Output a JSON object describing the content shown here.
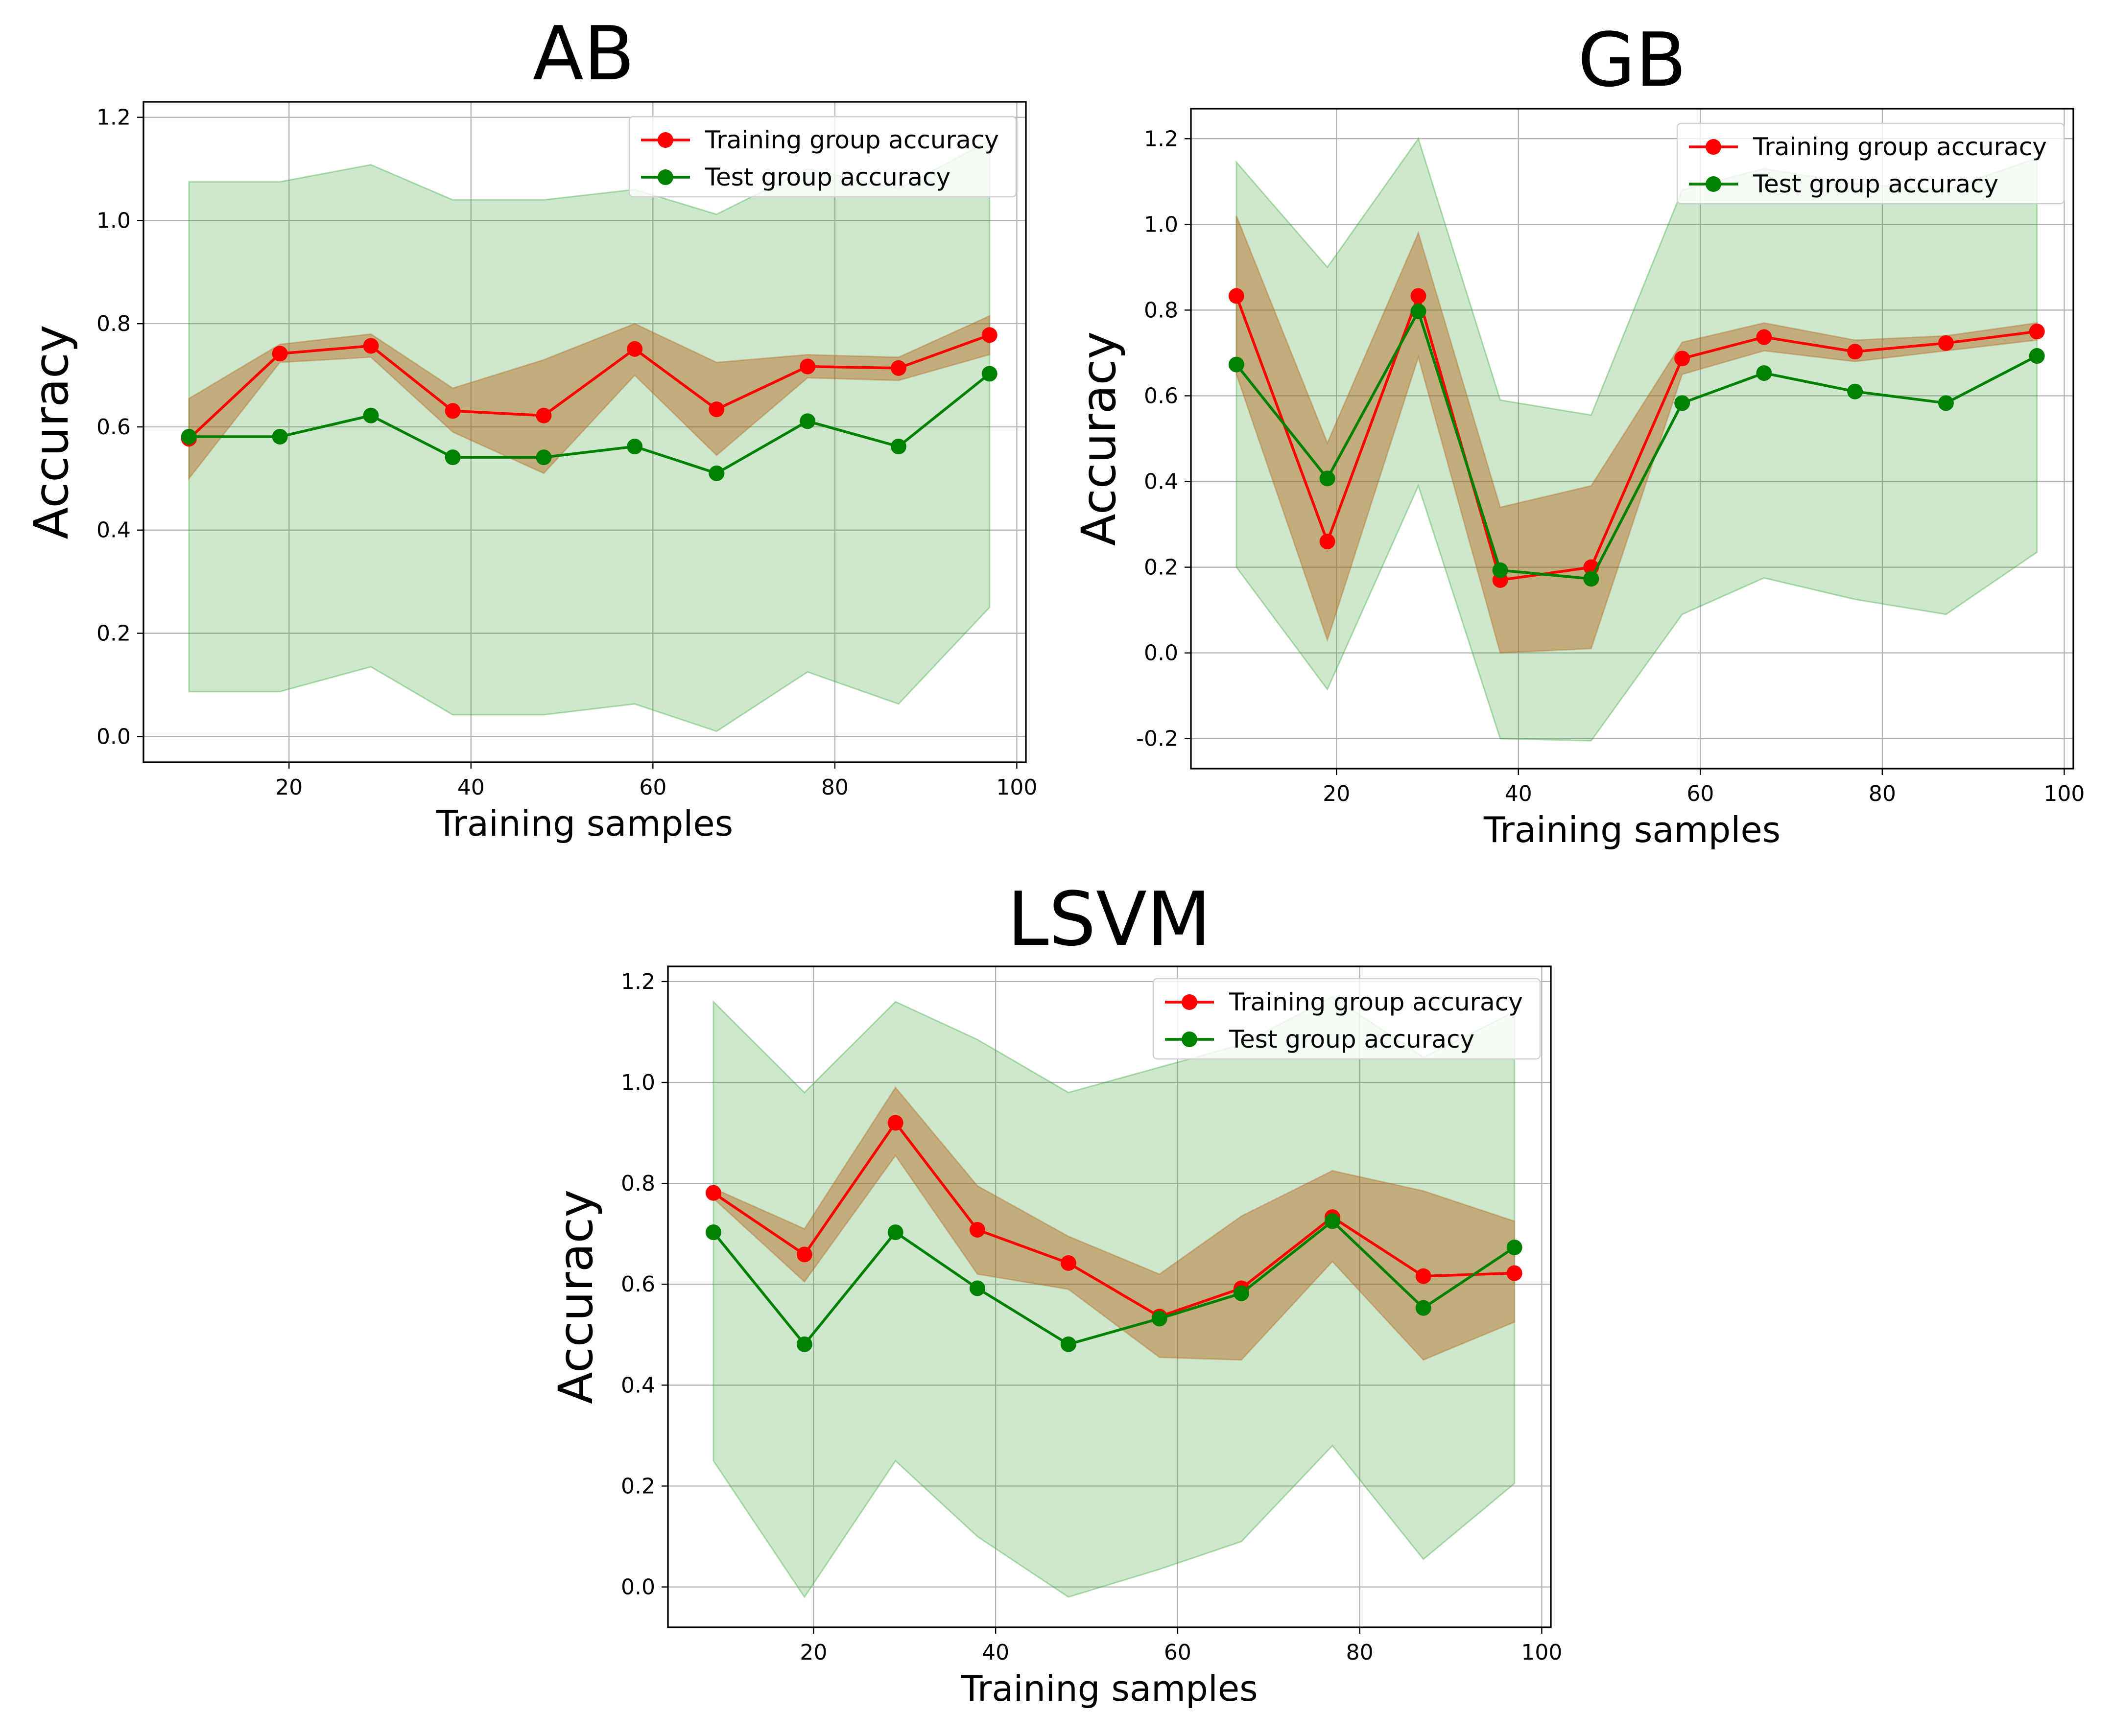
{
  "chart_data": [
    {
      "type": "line",
      "title": "AB",
      "xlabel": "Training samples",
      "ylabel": "Accuracy",
      "xlim": [
        4,
        101
      ],
      "ylim": [
        -0.05,
        1.23
      ],
      "xticks": [
        20,
        40,
        60,
        80,
        100
      ],
      "yticks": [
        0.0,
        0.2,
        0.4,
        0.6,
        0.8,
        1.0,
        1.2
      ],
      "grid": true,
      "legend_position": "top-right",
      "x": [
        9,
        19,
        29,
        38,
        48,
        58,
        67,
        77,
        87,
        97
      ],
      "series": [
        {
          "name": "Training group accuracy",
          "color": "#ff0000",
          "values": [
            0.577,
            0.742,
            0.757,
            0.631,
            0.622,
            0.751,
            0.634,
            0.717,
            0.714,
            0.778
          ],
          "band_lower": [
            0.5,
            0.725,
            0.735,
            0.59,
            0.51,
            0.7,
            0.545,
            0.695,
            0.69,
            0.74
          ],
          "band_upper": [
            0.655,
            0.76,
            0.78,
            0.675,
            0.73,
            0.8,
            0.725,
            0.74,
            0.735,
            0.815
          ]
        },
        {
          "name": "Test group accuracy",
          "color": "#008000",
          "values": [
            0.581,
            0.581,
            0.622,
            0.541,
            0.541,
            0.562,
            0.51,
            0.611,
            0.562,
            0.703
          ],
          "band_lower": [
            0.087,
            0.087,
            0.135,
            0.042,
            0.042,
            0.063,
            0.01,
            0.125,
            0.063,
            0.25
          ],
          "band_upper": [
            1.075,
            1.075,
            1.108,
            1.04,
            1.04,
            1.06,
            1.012,
            1.1,
            1.061,
            1.155
          ]
        }
      ]
    },
    {
      "type": "line",
      "title": "GB",
      "xlabel": "Training samples",
      "ylabel": "Accuracy",
      "xlim": [
        4,
        101
      ],
      "ylim": [
        -0.27,
        1.27
      ],
      "xticks": [
        20,
        40,
        60,
        80,
        100
      ],
      "yticks": [
        -0.2,
        0.0,
        0.2,
        0.4,
        0.6,
        0.8,
        1.0,
        1.2
      ],
      "grid": true,
      "legend_position": "top-right",
      "x": [
        9,
        19,
        29,
        38,
        48,
        58,
        67,
        77,
        87,
        97
      ],
      "series": [
        {
          "name": "Training group accuracy",
          "color": "#ff0000",
          "values": [
            0.833,
            0.26,
            0.833,
            0.17,
            0.2,
            0.687,
            0.737,
            0.703,
            0.723,
            0.75
          ],
          "band_lower": [
            0.65,
            0.03,
            0.69,
            0.0,
            0.01,
            0.65,
            0.705,
            0.68,
            0.705,
            0.73
          ],
          "band_upper": [
            1.02,
            0.49,
            0.98,
            0.34,
            0.39,
            0.725,
            0.77,
            0.73,
            0.74,
            0.77
          ]
        },
        {
          "name": "Test group accuracy",
          "color": "#008000",
          "values": [
            0.673,
            0.407,
            0.797,
            0.193,
            0.173,
            0.583,
            0.653,
            0.61,
            0.583,
            0.693
          ],
          "band_lower": [
            0.2,
            -0.085,
            0.39,
            -0.2,
            -0.205,
            0.09,
            0.175,
            0.125,
            0.09,
            0.235
          ],
          "band_upper": [
            1.145,
            0.9,
            1.2,
            0.59,
            0.555,
            1.08,
            1.13,
            1.095,
            1.08,
            1.155
          ]
        }
      ]
    },
    {
      "type": "line",
      "title": "LSVM",
      "xlabel": "Training samples",
      "ylabel": "Accuracy",
      "xlim": [
        4,
        101
      ],
      "ylim": [
        -0.08,
        1.23
      ],
      "xticks": [
        20,
        40,
        60,
        80,
        100
      ],
      "yticks": [
        0.0,
        0.2,
        0.4,
        0.6,
        0.8,
        1.0,
        1.2
      ],
      "grid": true,
      "legend_position": "top-right",
      "x": [
        9,
        19,
        29,
        38,
        48,
        58,
        67,
        77,
        87,
        97
      ],
      "series": [
        {
          "name": "Training group accuracy",
          "color": "#ff0000",
          "values": [
            0.781,
            0.659,
            0.92,
            0.708,
            0.642,
            0.536,
            0.592,
            0.733,
            0.616,
            0.622
          ],
          "band_lower": [
            0.77,
            0.605,
            0.855,
            0.62,
            0.59,
            0.455,
            0.45,
            0.645,
            0.45,
            0.525
          ],
          "band_upper": [
            0.79,
            0.71,
            0.99,
            0.795,
            0.695,
            0.62,
            0.735,
            0.825,
            0.785,
            0.725
          ]
        },
        {
          "name": "Test group accuracy",
          "color": "#008000",
          "values": [
            0.703,
            0.481,
            0.703,
            0.592,
            0.481,
            0.532,
            0.582,
            0.725,
            0.553,
            0.673
          ],
          "band_lower": [
            0.25,
            -0.02,
            0.25,
            0.1,
            -0.02,
            0.035,
            0.09,
            0.28,
            0.055,
            0.205
          ],
          "band_upper": [
            1.16,
            0.98,
            1.16,
            1.085,
            0.98,
            1.03,
            1.075,
            1.17,
            1.05,
            1.14
          ]
        }
      ]
    }
  ]
}
